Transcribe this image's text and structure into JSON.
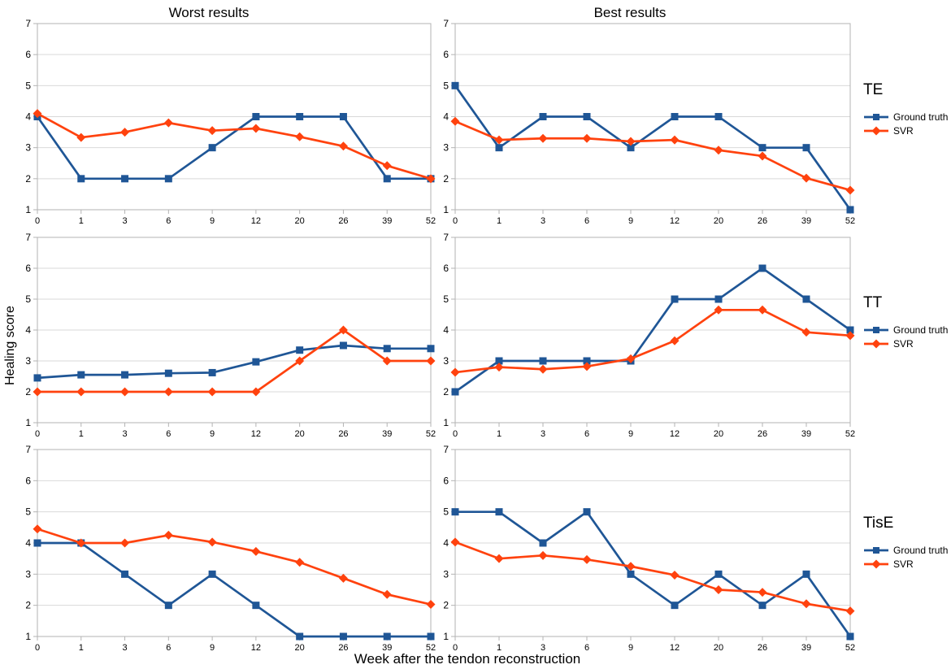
{
  "page": {
    "worst_title": "Worst results",
    "best_title": "Best results",
    "ylabel": "Healing score",
    "xlabel": "Week after the tendon reconstruction"
  },
  "groups": [
    {
      "label": "TE"
    },
    {
      "label": "TT"
    },
    {
      "label": "TisE"
    }
  ],
  "legend": {
    "series": [
      {
        "name": "Ground truth",
        "marker": "square"
      },
      {
        "name": "SVR",
        "marker": "diamond"
      }
    ]
  },
  "colors": {
    "ground_truth": "#1f5696",
    "svr": "#ff420e",
    "grid": "#d9d9d9",
    "axis": "#b3b3b3",
    "text": "#000000"
  },
  "axis": {
    "x_categories": [
      "0",
      "1",
      "3",
      "6",
      "9",
      "12",
      "20",
      "26",
      "39",
      "52"
    ],
    "y_ticks": [
      1,
      2,
      3,
      4,
      5,
      6,
      7
    ],
    "ylim": [
      1,
      7
    ]
  },
  "chart_data": [
    {
      "type": "line",
      "group": "TE",
      "column": "Worst results",
      "categories": [
        "0",
        "1",
        "3",
        "6",
        "9",
        "12",
        "20",
        "26",
        "39",
        "52"
      ],
      "ylim": [
        1,
        7
      ],
      "xlabel": "Week after the tendon reconstruction",
      "ylabel": "Healing score",
      "series": [
        {
          "name": "Ground truth",
          "values": [
            4,
            2,
            2,
            2,
            3,
            4,
            4,
            4,
            2,
            2
          ]
        },
        {
          "name": "SVR",
          "values": [
            4.1,
            3.33,
            3.5,
            3.8,
            3.55,
            3.62,
            3.35,
            3.05,
            2.42,
            2.0
          ]
        }
      ]
    },
    {
      "type": "line",
      "group": "TE",
      "column": "Best results",
      "categories": [
        "0",
        "1",
        "3",
        "6",
        "9",
        "12",
        "20",
        "26",
        "39",
        "52"
      ],
      "ylim": [
        1,
        7
      ],
      "xlabel": "Week after the tendon reconstruction",
      "ylabel": "Healing score",
      "series": [
        {
          "name": "Ground truth",
          "values": [
            5,
            3,
            4,
            4,
            3,
            4,
            4,
            3,
            3,
            1
          ]
        },
        {
          "name": "SVR",
          "values": [
            3.85,
            3.25,
            3.3,
            3.3,
            3.2,
            3.25,
            2.92,
            2.73,
            2.02,
            1.63
          ]
        }
      ]
    },
    {
      "type": "line",
      "group": "TT",
      "column": "Worst results",
      "categories": [
        "0",
        "1",
        "3",
        "6",
        "9",
        "12",
        "20",
        "26",
        "39",
        "52"
      ],
      "ylim": [
        1,
        7
      ],
      "xlabel": "Week after the tendon reconstruction",
      "ylabel": "Healing score",
      "series": [
        {
          "name": "Ground truth",
          "values": [
            2.45,
            2.55,
            2.55,
            2.6,
            2.62,
            2.97,
            3.35,
            3.5,
            3.4,
            3.4
          ]
        },
        {
          "name": "SVR",
          "values": [
            2,
            2,
            2,
            2,
            2,
            2,
            3,
            4,
            3,
            3
          ]
        }
      ]
    },
    {
      "type": "line",
      "group": "TT",
      "column": "Best results",
      "categories": [
        "0",
        "1",
        "3",
        "6",
        "9",
        "12",
        "20",
        "26",
        "39",
        "52"
      ],
      "ylim": [
        1,
        7
      ],
      "xlabel": "Week after the tendon reconstruction",
      "ylabel": "Healing score",
      "series": [
        {
          "name": "Ground truth",
          "values": [
            2,
            3,
            3,
            3,
            3,
            5,
            5,
            6,
            5,
            4
          ]
        },
        {
          "name": "SVR",
          "values": [
            2.63,
            2.8,
            2.73,
            2.82,
            3.07,
            3.65,
            4.65,
            4.65,
            3.93,
            3.82
          ]
        }
      ]
    },
    {
      "type": "line",
      "group": "TisE",
      "column": "Worst results",
      "categories": [
        "0",
        "1",
        "3",
        "6",
        "9",
        "12",
        "20",
        "26",
        "39",
        "52"
      ],
      "ylim": [
        1,
        7
      ],
      "xlabel": "Week after the tendon reconstruction",
      "ylabel": "Healing score",
      "series": [
        {
          "name": "Ground truth",
          "values": [
            4,
            4,
            3,
            2,
            3,
            2,
            1,
            1,
            1,
            1
          ]
        },
        {
          "name": "SVR",
          "values": [
            4.45,
            4.0,
            4.0,
            4.25,
            4.03,
            3.73,
            3.38,
            2.87,
            2.35,
            2.03
          ]
        }
      ]
    },
    {
      "type": "line",
      "group": "TisE",
      "column": "Best results",
      "categories": [
        "0",
        "1",
        "3",
        "6",
        "9",
        "12",
        "20",
        "26",
        "39",
        "52"
      ],
      "ylim": [
        1,
        7
      ],
      "xlabel": "Week after the tendon reconstruction",
      "ylabel": "Healing score",
      "series": [
        {
          "name": "Ground truth",
          "values": [
            5,
            5,
            4,
            5,
            3,
            2,
            3,
            2,
            3,
            1
          ]
        },
        {
          "name": "SVR",
          "values": [
            4.03,
            3.5,
            3.6,
            3.47,
            3.25,
            2.97,
            2.5,
            2.42,
            2.05,
            1.82
          ]
        }
      ]
    }
  ]
}
